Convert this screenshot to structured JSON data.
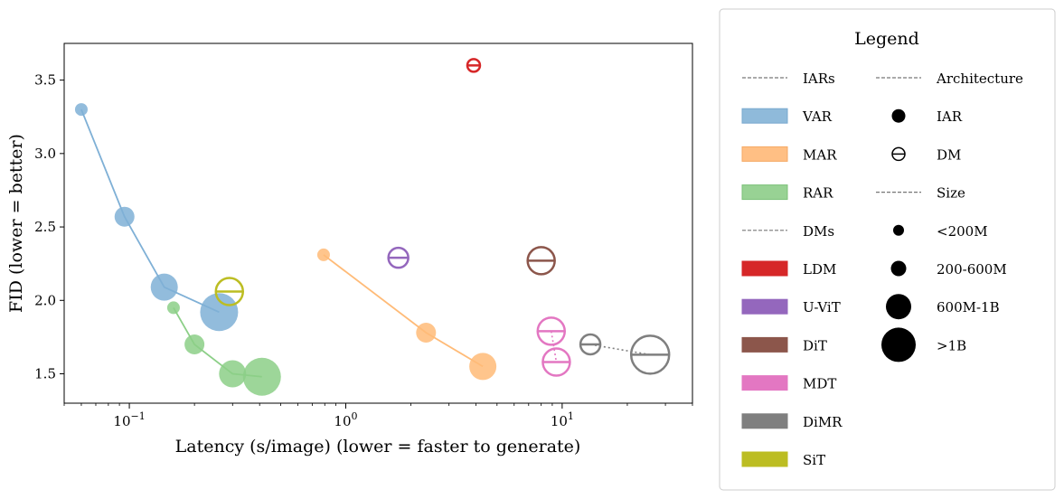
{
  "chart_data": {
    "type": "scatter",
    "xlabel": "Latency (s/image) (lower = faster to generate)",
    "ylabel": "FID (lower = better)",
    "x_scale": "log",
    "xlim": [
      0.05,
      40
    ],
    "ylim": [
      1.3,
      3.75
    ],
    "y_ticks": [
      "1.5",
      "2.0",
      "2.5",
      "3.0",
      "3.5"
    ],
    "y_tick_values": [
      1.5,
      2.0,
      2.5,
      3.0,
      3.5
    ],
    "x_ticks": [
      {
        "value": 0.1,
        "base": "10",
        "exp": "−1"
      },
      {
        "value": 1,
        "base": "10",
        "exp": "0"
      },
      {
        "value": 10,
        "base": "10",
        "exp": "1"
      }
    ],
    "grid": false,
    "series": [
      {
        "name": "VAR",
        "group": "IARs",
        "architecture": "IAR",
        "color": "#7fb0d6",
        "connected": true,
        "line_style": "solid",
        "points": [
          {
            "x": 0.06,
            "y": 3.3,
            "size": "<200M"
          },
          {
            "x": 0.095,
            "y": 2.57,
            "size": "200-600M"
          },
          {
            "x": 0.145,
            "y": 2.09,
            "size": "600M-1B"
          },
          {
            "x": 0.26,
            "y": 1.92,
            "size": ">1B"
          }
        ]
      },
      {
        "name": "MAR",
        "group": "IARs",
        "architecture": "IAR",
        "color": "#ffbb78",
        "connected": true,
        "line_style": "solid",
        "points": [
          {
            "x": 0.79,
            "y": 2.31,
            "size": "<200M"
          },
          {
            "x": 2.35,
            "y": 1.78,
            "size": "200-600M"
          },
          {
            "x": 4.3,
            "y": 1.55,
            "size": "600M-1B"
          }
        ]
      },
      {
        "name": "RAR",
        "group": "IARs",
        "architecture": "IAR",
        "color": "#8ccf87",
        "connected": true,
        "line_style": "solid",
        "points": [
          {
            "x": 0.16,
            "y": 1.95,
            "size": "<200M"
          },
          {
            "x": 0.2,
            "y": 1.7,
            "size": "200-600M"
          },
          {
            "x": 0.3,
            "y": 1.5,
            "size": "600M-1B"
          },
          {
            "x": 0.41,
            "y": 1.48,
            "size": ">1B"
          }
        ]
      },
      {
        "name": "LDM",
        "group": "DMs",
        "architecture": "DM",
        "color": "#d62728",
        "connected": false,
        "points": [
          {
            "x": 3.9,
            "y": 3.6,
            "size": "<200M"
          }
        ]
      },
      {
        "name": "U-ViT",
        "group": "DMs",
        "architecture": "DM",
        "color": "#9467bd",
        "connected": false,
        "points": [
          {
            "x": 1.75,
            "y": 2.29,
            "size": "200-600M"
          }
        ]
      },
      {
        "name": "DiT",
        "group": "DMs",
        "architecture": "DM",
        "color": "#8c564b",
        "connected": false,
        "points": [
          {
            "x": 8.0,
            "y": 2.27,
            "size": "600M-1B"
          }
        ]
      },
      {
        "name": "MDT",
        "group": "DMs",
        "architecture": "DM",
        "color": "#e377c2",
        "connected": true,
        "line_style": "dotted",
        "points": [
          {
            "x": 8.9,
            "y": 1.79,
            "size": "600M-1B"
          },
          {
            "x": 9.4,
            "y": 1.58,
            "size": "600M-1B"
          }
        ]
      },
      {
        "name": "DiMR",
        "group": "DMs",
        "architecture": "DM",
        "color": "#7f7f7f",
        "connected": true,
        "line_style": "dotted",
        "points": [
          {
            "x": 13.5,
            "y": 1.7,
            "size": "200-600M"
          },
          {
            "x": 25.5,
            "y": 1.63,
            "size": ">1B"
          }
        ]
      },
      {
        "name": "SiT",
        "group": "DMs",
        "architecture": "DM",
        "color": "#bcbd22",
        "connected": false,
        "points": [
          {
            "x": 0.29,
            "y": 2.06,
            "size": "600M-1B"
          }
        ]
      }
    ],
    "size_radius": {
      "<200M": 7,
      "200-600M": 11,
      "600M-1B": 15,
      ">1B": 21
    },
    "legend": {
      "title": "Legend",
      "placement": "right",
      "col1": [
        {
          "label": "IARs",
          "kind": "header"
        },
        {
          "label": "VAR",
          "kind": "patch",
          "color": "#8fbada",
          "edge": "#7aa9cf"
        },
        {
          "label": "MAR",
          "kind": "patch",
          "color": "#ffbf84",
          "edge": "#f5aa66"
        },
        {
          "label": "RAR",
          "kind": "patch",
          "color": "#98d294",
          "edge": "#7cc178"
        },
        {
          "label": "DMs",
          "kind": "header"
        },
        {
          "label": "LDM",
          "kind": "patch",
          "color": "#d62728",
          "edge": "#d62728"
        },
        {
          "label": "U-ViT",
          "kind": "patch",
          "color": "#9467bd",
          "edge": "#9467bd"
        },
        {
          "label": "DiT",
          "kind": "patch",
          "color": "#8c564b",
          "edge": "#8c564b"
        },
        {
          "label": "MDT",
          "kind": "patch",
          "color": "#e377c2",
          "edge": "#e377c2"
        },
        {
          "label": "DiMR",
          "kind": "patch",
          "color": "#7f7f7f",
          "edge": "#7f7f7f"
        },
        {
          "label": "SiT",
          "kind": "patch",
          "color": "#bcbd22",
          "edge": "#bcbd22"
        }
      ],
      "col2": [
        {
          "label": "Architecture",
          "kind": "header"
        },
        {
          "label": "IAR",
          "kind": "dot",
          "size": "200-600M"
        },
        {
          "label": "DM",
          "kind": "ring",
          "size": "200-600M"
        },
        {
          "label": "Size",
          "kind": "header"
        },
        {
          "label": "<200M",
          "kind": "dot",
          "size": "<200M"
        },
        {
          "label": "200-600M",
          "kind": "dot",
          "size": "200-600M"
        },
        {
          "label": "600M-1B",
          "kind": "dot",
          "size": "600M-1B"
        },
        {
          "label": ">1B",
          "kind": "dot",
          "size": ">1B"
        }
      ]
    }
  }
}
